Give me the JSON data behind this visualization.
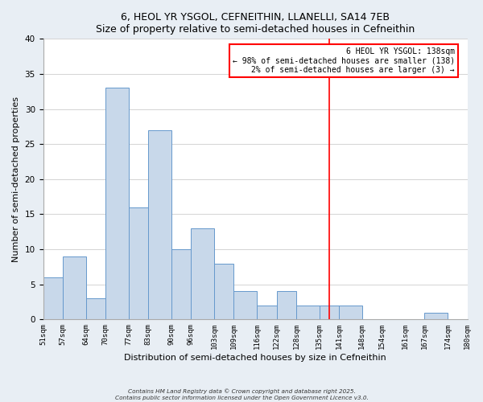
{
  "title": "6, HEOL YR YSGOL, CEFNEITHIN, LLANELLI, SA14 7EB",
  "subtitle": "Size of property relative to semi-detached houses in Cefneithin",
  "xlabel": "Distribution of semi-detached houses by size in Cefneithin",
  "ylabel": "Number of semi-detached properties",
  "bin_edges": [
    51,
    57,
    64,
    70,
    77,
    83,
    90,
    96,
    103,
    109,
    116,
    122,
    128,
    135,
    141,
    148,
    154,
    161,
    167,
    174,
    180
  ],
  "counts": [
    6,
    9,
    3,
    33,
    16,
    27,
    10,
    13,
    8,
    4,
    2,
    4,
    2,
    2,
    2,
    0,
    0,
    0,
    1,
    0
  ],
  "bar_color": "#c8d8ea",
  "bar_edge_color": "#6699cc",
  "ylim": [
    0,
    40
  ],
  "yticks": [
    0,
    5,
    10,
    15,
    20,
    25,
    30,
    35,
    40
  ],
  "x_tick_labels": [
    "51sqm",
    "57sqm",
    "64sqm",
    "70sqm",
    "77sqm",
    "83sqm",
    "90sqm",
    "96sqm",
    "103sqm",
    "109sqm",
    "116sqm",
    "122sqm",
    "128sqm",
    "135sqm",
    "141sqm",
    "148sqm",
    "154sqm",
    "161sqm",
    "167sqm",
    "174sqm",
    "180sqm"
  ],
  "vline_x": 138,
  "vline_color": "red",
  "annotation_title": "6 HEOL YR YSGOL: 138sqm",
  "annotation_line1": "← 98% of semi-detached houses are smaller (138)",
  "annotation_line2": "2% of semi-detached houses are larger (3) →",
  "footnote1": "Contains HM Land Registry data © Crown copyright and database right 2025.",
  "footnote2": "Contains public sector information licensed under the Open Government Licence v3.0.",
  "background_color": "#e8eef4",
  "plot_bg_color": "#ffffff",
  "grid_color": "#cccccc"
}
